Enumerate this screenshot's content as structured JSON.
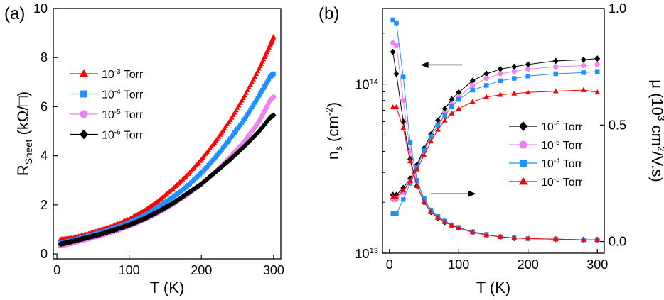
{
  "chart_data": [
    {
      "panel_label": "(a)",
      "type": "line",
      "xlabel": "T (K)",
      "ylabel_main": "R",
      "ylabel_sub": "Sheet",
      "ylabel_unit": "(kΩ/□)",
      "xlim": [
        -5,
        310
      ],
      "ylim": [
        -0.2,
        10
      ],
      "xticks": [
        0,
        100,
        200,
        300
      ],
      "yticks": [
        0,
        2,
        4,
        6,
        8,
        10
      ],
      "legend_position": "center-left",
      "series": [
        {
          "name": "10-3 Torr",
          "pressure_exp": "-3",
          "marker": "triangle",
          "color": "#ff0000",
          "x": [
            5,
            20,
            40,
            60,
            80,
            100,
            120,
            140,
            160,
            180,
            200,
            220,
            240,
            260,
            280,
            295,
            300
          ],
          "y": [
            0.6,
            0.65,
            0.8,
            0.98,
            1.17,
            1.42,
            1.75,
            2.15,
            2.65,
            3.2,
            3.85,
            4.6,
            5.45,
            6.45,
            7.55,
            8.5,
            8.85
          ]
        },
        {
          "name": "10-4 Torr",
          "pressure_exp": "-4",
          "marker": "square",
          "color": "#1e90ff",
          "x": [
            5,
            20,
            40,
            60,
            80,
            100,
            120,
            140,
            160,
            180,
            200,
            220,
            240,
            260,
            280,
            295,
            300
          ],
          "y": [
            0.45,
            0.55,
            0.72,
            0.88,
            1.06,
            1.28,
            1.55,
            1.9,
            2.3,
            2.75,
            3.3,
            3.95,
            4.7,
            5.5,
            6.45,
            7.2,
            7.35
          ]
        },
        {
          "name": "10-5 Torr",
          "pressure_exp": "-5",
          "marker": "circle",
          "color": "#ee82ee",
          "x": [
            5,
            20,
            40,
            60,
            80,
            100,
            120,
            140,
            160,
            180,
            200,
            220,
            240,
            260,
            280,
            295,
            300
          ],
          "y": [
            0.32,
            0.42,
            0.58,
            0.74,
            0.92,
            1.13,
            1.38,
            1.67,
            2.02,
            2.4,
            2.85,
            3.35,
            3.95,
            4.6,
            5.4,
            6.25,
            6.4
          ]
        },
        {
          "name": "10-6 Torr",
          "pressure_exp": "-6",
          "marker": "diamond",
          "color": "#000000",
          "x": [
            5,
            20,
            40,
            60,
            80,
            100,
            120,
            140,
            160,
            180,
            200,
            220,
            240,
            260,
            280,
            295,
            300
          ],
          "y": [
            0.4,
            0.5,
            0.65,
            0.8,
            0.98,
            1.18,
            1.42,
            1.72,
            2.05,
            2.45,
            2.85,
            3.35,
            3.85,
            4.4,
            5.0,
            5.55,
            5.65
          ]
        }
      ]
    },
    {
      "panel_label": "(b)",
      "type": "line",
      "xlabel": "T (K)",
      "ylabel_left": "n",
      "ylabel_left_sub": "s",
      "ylabel_left_unit": "(cm",
      "ylabel_left_exp": "-2",
      "ylabel_left_close": ")",
      "ylabel_right": "μ (10",
      "ylabel_right_exp1": "3",
      "ylabel_right_mid": " cm",
      "ylabel_right_exp2": "2",
      "ylabel_right_end": "/V.s)",
      "xlim": [
        -10,
        310
      ],
      "ylim_left_log": [
        10000000000000.0,
        280000000000000.0
      ],
      "ylim_right": [
        -0.05,
        1.0
      ],
      "xticks": [
        0,
        100,
        200,
        300
      ],
      "yticks_left": [
        {
          "base": "10",
          "exp": "13"
        },
        {
          "base": "10",
          "exp": "14"
        }
      ],
      "yticks_right": [
        "0.0",
        "0.5",
        "1.0"
      ],
      "legend_position": "center-right",
      "carrier_density": [
        {
          "name": "10-6 Torr",
          "pressure_exp": "-6",
          "marker": "diamond",
          "color": "#000000",
          "x": [
            5,
            10,
            20,
            30,
            40,
            50,
            60,
            70,
            80,
            90,
            100,
            120,
            140,
            160,
            180,
            200,
            240,
            280,
            300
          ],
          "y": [
            155000000000000.0,
            115000000000000.0,
            60000000000000.0,
            36000000000000.0,
            25000000000000.0,
            20000000000000.0,
            17500000000000.0,
            16200000000000.0,
            15300000000000.0,
            14600000000000.0,
            14100000000000.0,
            13300000000000.0,
            12800000000000.0,
            12500000000000.0,
            12300000000000.0,
            12200000000000.0,
            12100000000000.0,
            12000000000000.0,
            12000000000000.0
          ]
        },
        {
          "name": "10-5 Torr",
          "pressure_exp": "-5",
          "marker": "circle",
          "color": "#ee82ee",
          "x": [
            5,
            10,
            20,
            30,
            40,
            50,
            60,
            70,
            80,
            90,
            100,
            120,
            140,
            160,
            180,
            200,
            240,
            280,
            300
          ],
          "y": [
            175000000000000.0,
            170000000000000.0,
            80000000000000.0,
            40000000000000.0,
            26500000000000.0,
            20500000000000.0,
            17800000000000.0,
            16300000000000.0,
            15400000000000.0,
            14700000000000.0,
            14100000000000.0,
            13300000000000.0,
            12800000000000.0,
            12500000000000.0,
            12300000000000.0,
            12200000000000.0,
            12100000000000.0,
            12000000000000.0,
            12000000000000.0
          ]
        },
        {
          "name": "10-4 Torr",
          "pressure_exp": "-4",
          "marker": "square",
          "color": "#1e90ff",
          "x": [
            5,
            10,
            20,
            30,
            40,
            50,
            60,
            70,
            80,
            90,
            100,
            120,
            140,
            160,
            180,
            200,
            240,
            280,
            300
          ],
          "y": [
            240000000000000.0,
            230000000000000.0,
            110000000000000.0,
            45000000000000.0,
            27000000000000.0,
            21000000000000.0,
            18000000000000.0,
            16500000000000.0,
            15500000000000.0,
            14700000000000.0,
            14200000000000.0,
            13400000000000.0,
            12900000000000.0,
            12500000000000.0,
            12300000000000.0,
            12200000000000.0,
            12100000000000.0,
            12000000000000.0,
            12000000000000.0
          ]
        },
        {
          "name": "10-3 Torr",
          "pressure_exp": "-3",
          "marker": "triangle",
          "color": "#ff0000",
          "x": [
            5,
            10,
            20,
            30,
            40,
            50,
            60,
            70,
            80,
            90,
            100,
            120,
            140,
            160,
            180,
            200,
            240,
            280,
            300
          ],
          "y": [
            73000000000000.0,
            73000000000000.0,
            55000000000000.0,
            35000000000000.0,
            25000000000000.0,
            20000000000000.0,
            17500000000000.0,
            16200000000000.0,
            15300000000000.0,
            14600000000000.0,
            14100000000000.0,
            13300000000000.0,
            12800000000000.0,
            12500000000000.0,
            12300000000000.0,
            12200000000000.0,
            12100000000000.0,
            12000000000000.0,
            12000000000000.0
          ]
        }
      ],
      "mobility": [
        {
          "name": "10-6 Torr",
          "pressure_exp": "-6",
          "marker": "diamond",
          "color": "#000000",
          "x": [
            5,
            10,
            20,
            30,
            40,
            50,
            60,
            70,
            80,
            90,
            100,
            120,
            140,
            160,
            180,
            200,
            240,
            280,
            300
          ],
          "y": [
            0.2,
            0.2,
            0.23,
            0.27,
            0.33,
            0.4,
            0.46,
            0.52,
            0.57,
            0.61,
            0.64,
            0.69,
            0.72,
            0.74,
            0.75,
            0.76,
            0.775,
            0.78,
            0.785
          ]
        },
        {
          "name": "10-5 Torr",
          "pressure_exp": "-5",
          "marker": "circle",
          "color": "#ee82ee",
          "x": [
            5,
            10,
            20,
            30,
            40,
            50,
            60,
            70,
            80,
            90,
            100,
            120,
            140,
            160,
            180,
            200,
            240,
            280,
            300
          ],
          "y": [
            0.18,
            0.18,
            0.21,
            0.26,
            0.32,
            0.39,
            0.45,
            0.5,
            0.55,
            0.59,
            0.62,
            0.67,
            0.7,
            0.72,
            0.73,
            0.74,
            0.75,
            0.755,
            0.76
          ]
        },
        {
          "name": "10-4 Torr",
          "pressure_exp": "-4",
          "marker": "square",
          "color": "#1e90ff",
          "x": [
            5,
            10,
            20,
            30,
            40,
            50,
            60,
            70,
            80,
            90,
            100,
            120,
            140,
            160,
            180,
            200,
            240,
            280,
            300
          ],
          "y": [
            0.12,
            0.12,
            0.18,
            0.25,
            0.32,
            0.39,
            0.45,
            0.5,
            0.54,
            0.58,
            0.61,
            0.65,
            0.67,
            0.69,
            0.7,
            0.71,
            0.72,
            0.725,
            0.73
          ]
        },
        {
          "name": "10-3 Torr",
          "pressure_exp": "-3",
          "marker": "triangle",
          "color": "#ff0000",
          "x": [
            5,
            10,
            20,
            30,
            40,
            50,
            60,
            70,
            80,
            90,
            100,
            120,
            140,
            160,
            180,
            200,
            240,
            280,
            300
          ],
          "y": [
            0.19,
            0.19,
            0.22,
            0.26,
            0.31,
            0.37,
            0.43,
            0.48,
            0.52,
            0.55,
            0.57,
            0.6,
            0.62,
            0.63,
            0.635,
            0.64,
            0.645,
            0.65,
            0.64
          ]
        }
      ],
      "arrows": [
        {
          "points_to": "left axis",
          "x_from": 105,
          "x_to": 45,
          "y_left": 130000000000000.0
        },
        {
          "points_to": "right axis",
          "x_from": 60,
          "x_to": 125,
          "y_right": 0.205
        }
      ]
    }
  ]
}
